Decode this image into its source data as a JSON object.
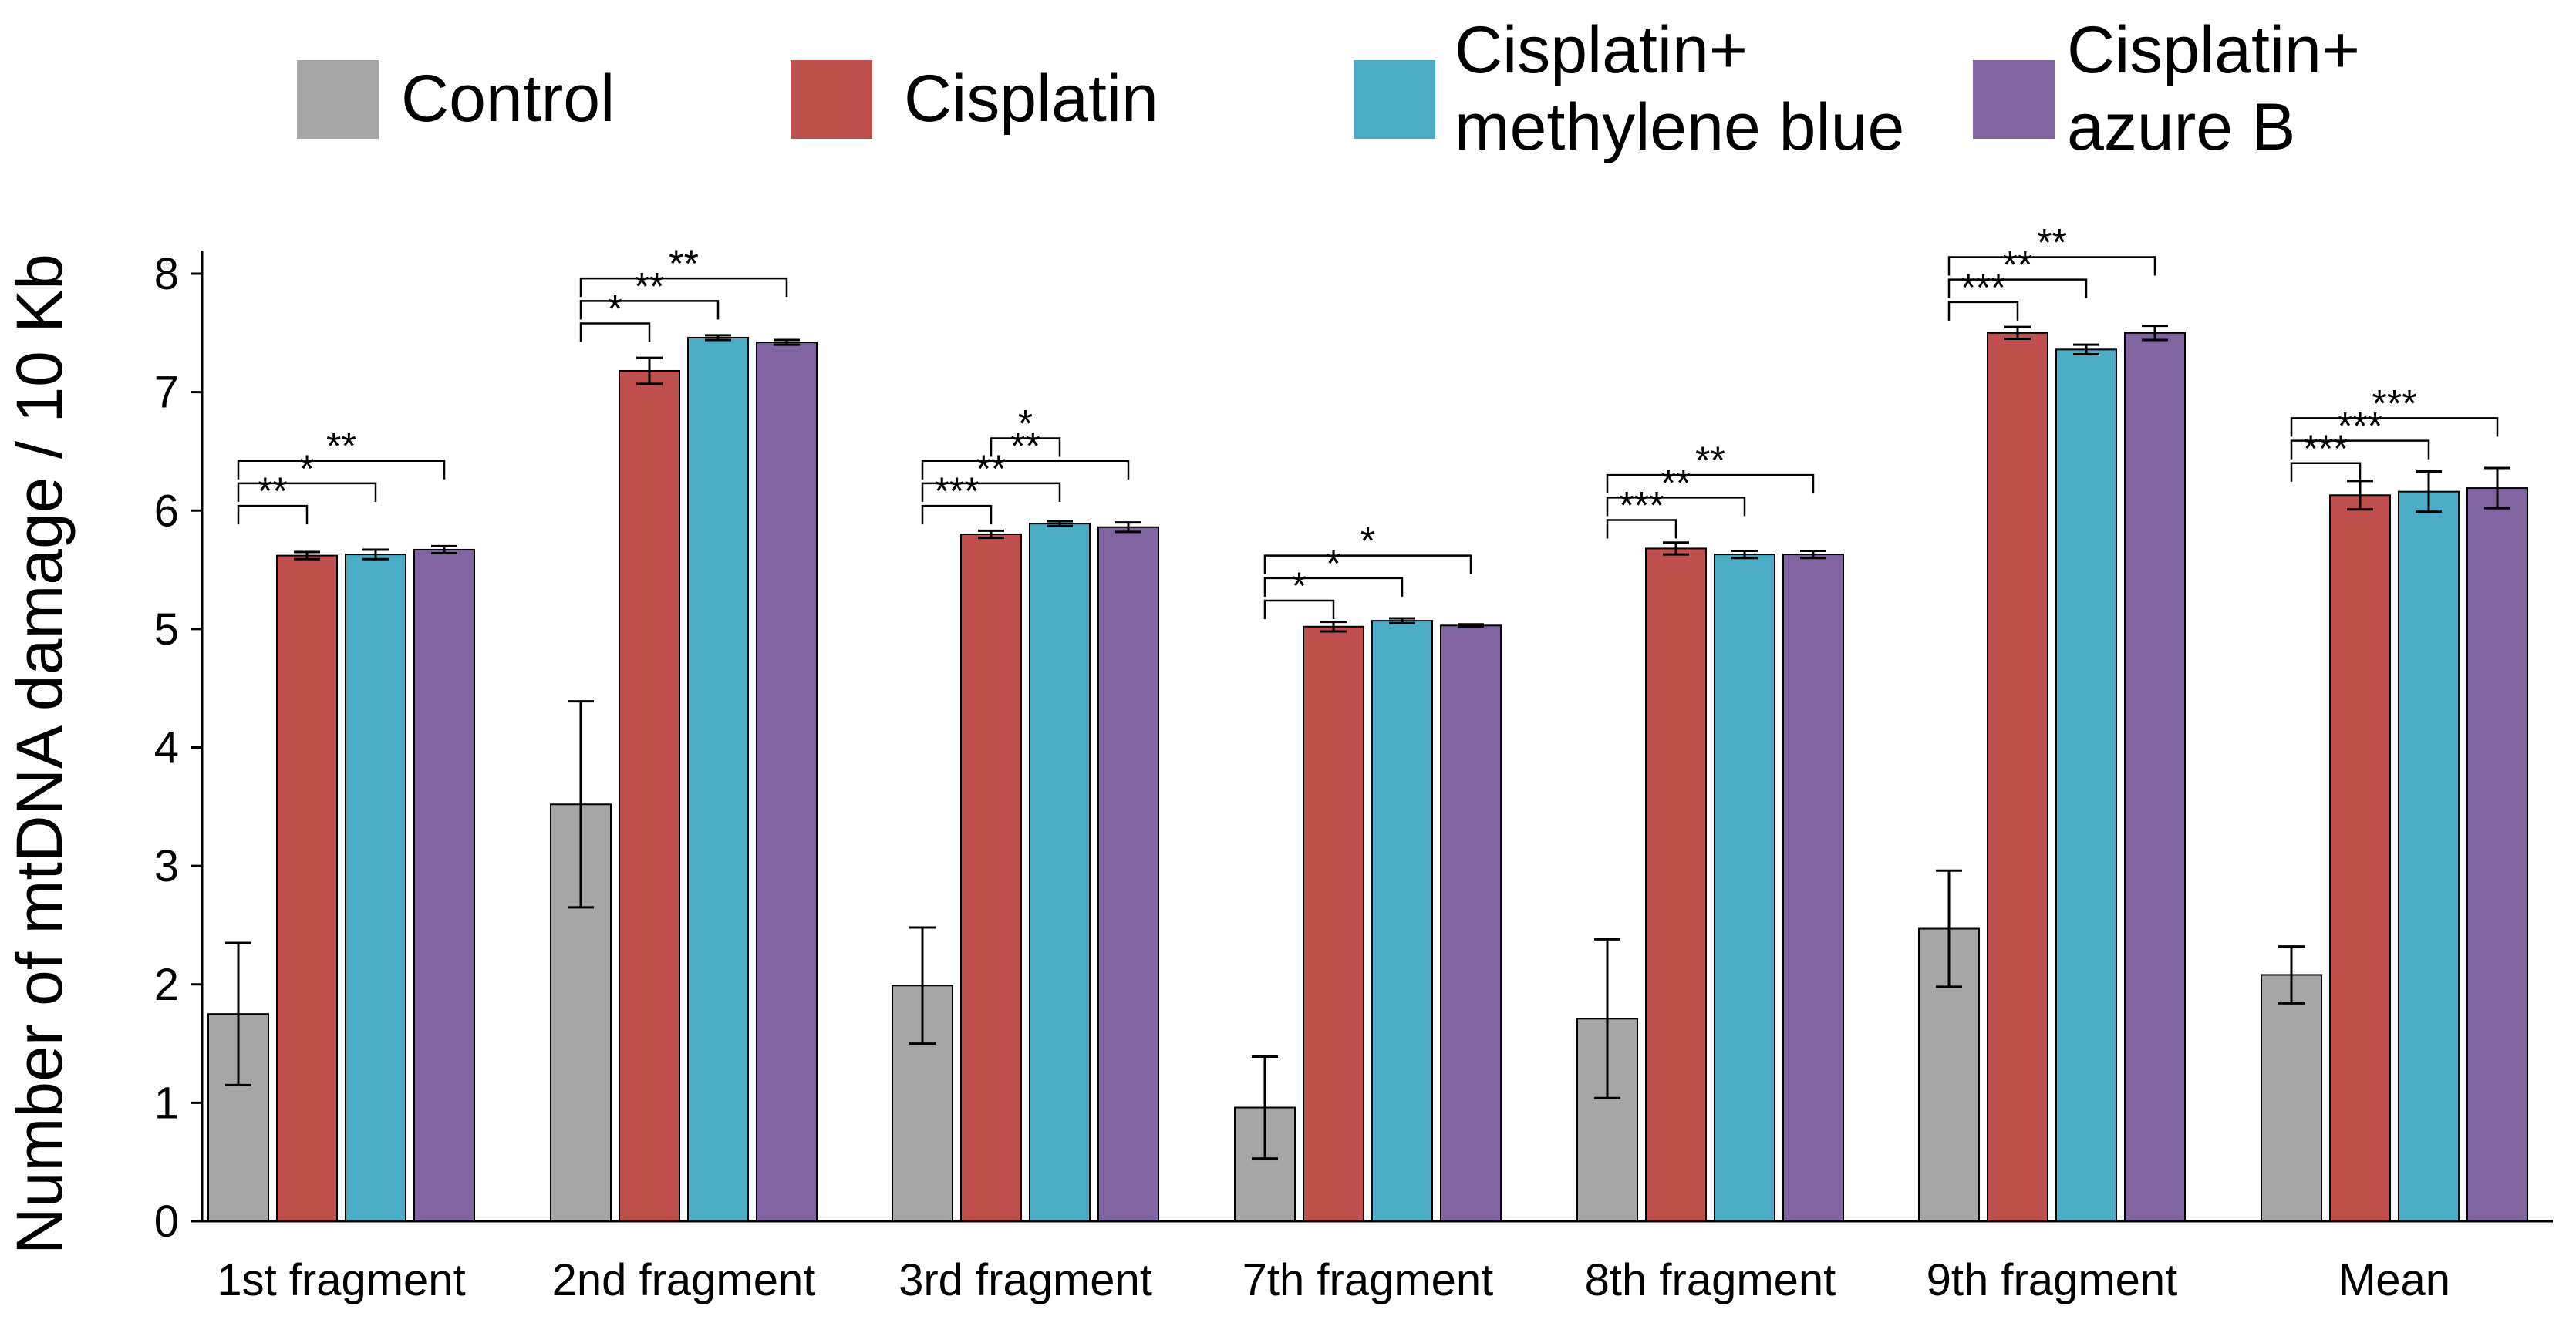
{
  "chart_data": {
    "type": "bar",
    "title": "",
    "xlabel": "",
    "ylabel": "Number of mtDNA damage / 10 Kb",
    "ylim": [
      0,
      8
    ],
    "yticks": [
      0,
      1,
      2,
      3,
      4,
      5,
      6,
      7,
      8
    ],
    "grid": false,
    "legend_position": "top",
    "categories": [
      "1st fragment",
      "2nd fragment",
      "3rd fragment",
      "7th fragment",
      "8th fragment",
      "9th fragment",
      "Mean"
    ],
    "series": [
      {
        "name": "Control",
        "label_lines": [
          "Control"
        ],
        "color": "#A6A6A6",
        "values": [
          1.75,
          3.52,
          1.99,
          0.96,
          1.71,
          2.47,
          2.08
        ],
        "errors": [
          0.6,
          0.87,
          0.49,
          0.43,
          0.67,
          0.49,
          0.24
        ]
      },
      {
        "name": "Cisplatin",
        "label_lines": [
          "Cisplatin"
        ],
        "color": "#C0504D",
        "values": [
          5.62,
          7.18,
          5.8,
          5.02,
          5.68,
          7.5,
          6.13
        ],
        "errors": [
          0.03,
          0.11,
          0.03,
          0.04,
          0.05,
          0.05,
          0.12
        ]
      },
      {
        "name": "Cisplatin+ methylene blue",
        "label_lines": [
          "Cisplatin+",
          "methylene blue"
        ],
        "color": "#4BACC6",
        "values": [
          5.63,
          7.46,
          5.89,
          5.07,
          5.63,
          7.36,
          6.16
        ],
        "errors": [
          0.04,
          0.02,
          0.02,
          0.02,
          0.03,
          0.04,
          0.17
        ]
      },
      {
        "name": "Cisplatin+ azure B",
        "label_lines": [
          "Cisplatin+",
          "azure B"
        ],
        "color": "#8064A2",
        "values": [
          5.67,
          7.42,
          5.86,
          5.03,
          5.63,
          7.5,
          6.19
        ],
        "errors": [
          0.03,
          0.02,
          0.04,
          0.01,
          0.03,
          0.06,
          0.17
        ]
      }
    ],
    "significance": [
      {
        "category": 0,
        "from": 0,
        "to": 1,
        "label": "**",
        "y": 6.04
      },
      {
        "category": 0,
        "from": 0,
        "to": 2,
        "label": "*",
        "y": 6.23
      },
      {
        "category": 0,
        "from": 0,
        "to": 3,
        "label": "**",
        "y": 6.42
      },
      {
        "category": 1,
        "from": 0,
        "to": 1,
        "label": "*",
        "y": 7.58
      },
      {
        "category": 1,
        "from": 0,
        "to": 2,
        "label": "**",
        "y": 7.77
      },
      {
        "category": 1,
        "from": 0,
        "to": 3,
        "label": "**",
        "y": 7.96
      },
      {
        "category": 2,
        "from": 0,
        "to": 1,
        "label": "***",
        "y": 6.04
      },
      {
        "category": 2,
        "from": 0,
        "to": 2,
        "label": "**",
        "y": 6.23
      },
      {
        "category": 2,
        "from": 0,
        "to": 3,
        "label": "**",
        "y": 6.42
      },
      {
        "category": 2,
        "from": 1,
        "to": 2,
        "label": "*",
        "y": 6.61
      },
      {
        "category": 3,
        "from": 0,
        "to": 1,
        "label": "*",
        "y": 5.24
      },
      {
        "category": 3,
        "from": 0,
        "to": 2,
        "label": "*",
        "y": 5.43
      },
      {
        "category": 3,
        "from": 0,
        "to": 3,
        "label": "*",
        "y": 5.62
      },
      {
        "category": 4,
        "from": 0,
        "to": 1,
        "label": "***",
        "y": 5.92
      },
      {
        "category": 4,
        "from": 0,
        "to": 2,
        "label": "**",
        "y": 6.11
      },
      {
        "category": 4,
        "from": 0,
        "to": 3,
        "label": "**",
        "y": 6.3
      },
      {
        "category": 5,
        "from": 0,
        "to": 1,
        "label": "***",
        "y": 7.76
      },
      {
        "category": 5,
        "from": 0,
        "to": 2,
        "label": "**",
        "y": 7.95
      },
      {
        "category": 5,
        "from": 0,
        "to": 3,
        "label": "**",
        "y": 8.14
      },
      {
        "category": 6,
        "from": 0,
        "to": 1,
        "label": "***",
        "y": 6.4
      },
      {
        "category": 6,
        "from": 0,
        "to": 2,
        "label": "***",
        "y": 6.59
      },
      {
        "category": 6,
        "from": 0,
        "to": 3,
        "label": "***",
        "y": 6.78
      }
    ]
  }
}
